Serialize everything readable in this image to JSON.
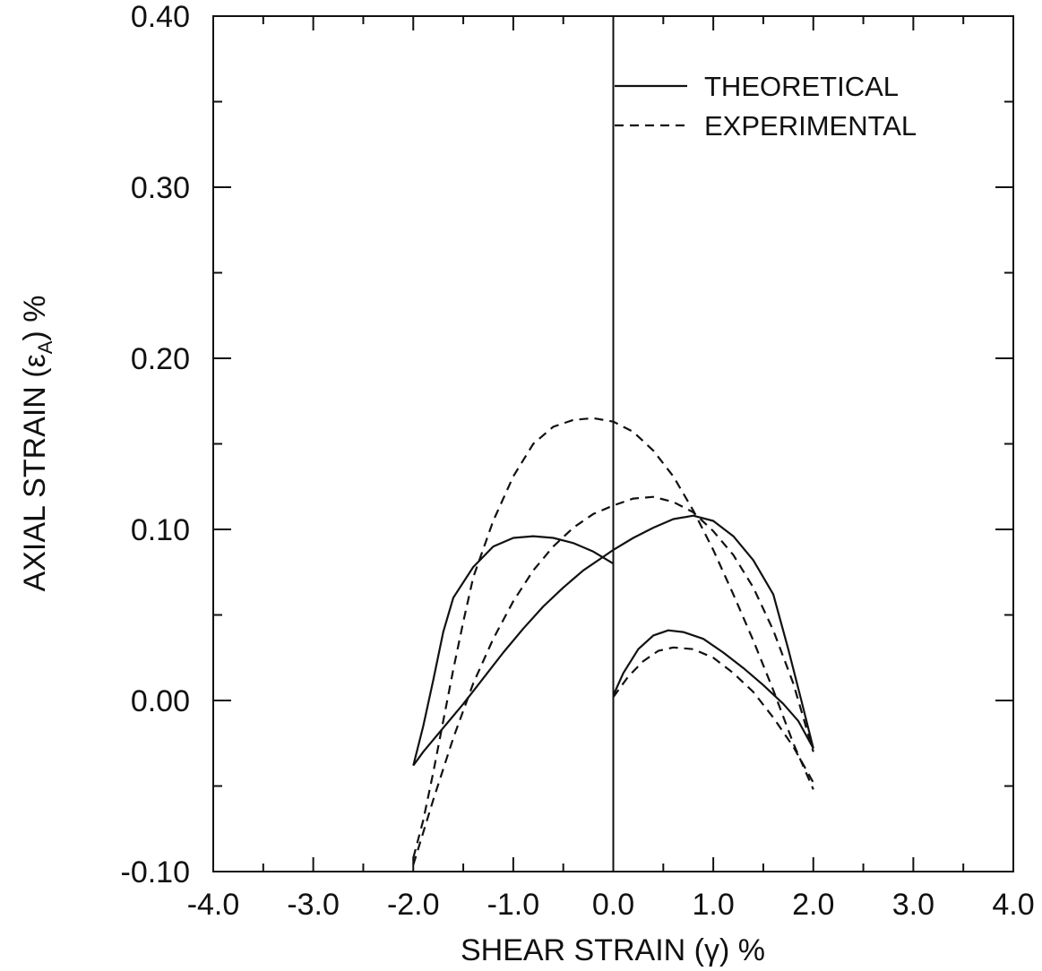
{
  "chart_data": {
    "type": "line",
    "title": "",
    "xlabel": "SHEAR STRAIN (γ) %",
    "ylabel": "AXIAL STRAIN (εA) %",
    "ylabel_main": "AXIAL STRAIN (ε",
    "ylabel_sub": "A",
    "ylabel_end": ") %",
    "xlim": [
      -4.0,
      4.0
    ],
    "ylim": [
      -0.1,
      0.4
    ],
    "x_ticks": [
      "-4.0",
      "-3.0",
      "-2.0",
      "-1.0",
      "0.0",
      "1.0",
      "2.0",
      "3.0",
      "4.0"
    ],
    "y_ticks": [
      "-0.10",
      "0.00",
      "0.10",
      "0.20",
      "0.30",
      "0.40"
    ],
    "grid": false,
    "legend_position": "top-right",
    "series": [
      {
        "name": "THEORETICAL",
        "style": "solid",
        "segments": [
          [
            [
              -2.0,
              -0.038
            ],
            [
              -1.9,
              -0.03
            ],
            [
              -1.7,
              -0.016
            ],
            [
              -1.5,
              -0.002
            ],
            [
              -1.3,
              0.013
            ],
            [
              -1.1,
              0.028
            ],
            [
              -0.9,
              0.042
            ],
            [
              -0.7,
              0.055
            ],
            [
              -0.5,
              0.066
            ],
            [
              -0.3,
              0.076
            ],
            [
              -0.1,
              0.084
            ],
            [
              0.0,
              0.088
            ],
            [
              0.2,
              0.095
            ],
            [
              0.4,
              0.101
            ],
            [
              0.6,
              0.106
            ],
            [
              0.8,
              0.108
            ],
            [
              1.0,
              0.105
            ],
            [
              1.2,
              0.096
            ],
            [
              1.4,
              0.082
            ],
            [
              1.6,
              0.062
            ],
            [
              1.75,
              0.03
            ],
            [
              1.88,
              0.0
            ],
            [
              2.0,
              -0.028
            ]
          ],
          [
            [
              0.0,
              0.08
            ],
            [
              -0.2,
              0.087
            ],
            [
              -0.4,
              0.092
            ],
            [
              -0.6,
              0.095
            ],
            [
              -0.8,
              0.096
            ],
            [
              -1.0,
              0.095
            ],
            [
              -1.2,
              0.09
            ],
            [
              -1.4,
              0.078
            ],
            [
              -1.6,
              0.06
            ],
            [
              -1.7,
              0.04
            ],
            [
              -1.8,
              0.012
            ],
            [
              -1.9,
              -0.015
            ],
            [
              -2.0,
              -0.038
            ]
          ],
          [
            [
              0.0,
              0.003
            ],
            [
              0.1,
              0.016
            ],
            [
              0.25,
              0.03
            ],
            [
              0.4,
              0.038
            ],
            [
              0.55,
              0.041
            ],
            [
              0.7,
              0.04
            ],
            [
              0.9,
              0.036
            ],
            [
              1.1,
              0.028
            ],
            [
              1.3,
              0.019
            ],
            [
              1.5,
              0.009
            ],
            [
              1.7,
              -0.002
            ],
            [
              1.85,
              -0.012
            ],
            [
              2.0,
              -0.028
            ]
          ]
        ]
      },
      {
        "name": "EXPERIMENTAL",
        "style": "dashed",
        "segments": [
          [
            [
              -2.0,
              -0.092
            ],
            [
              -1.9,
              -0.07
            ],
            [
              -1.8,
              -0.042
            ],
            [
              -1.7,
              -0.012
            ],
            [
              -1.6,
              0.018
            ],
            [
              -1.5,
              0.046
            ],
            [
              -1.4,
              0.072
            ],
            [
              -1.2,
              0.105
            ],
            [
              -1.0,
              0.131
            ],
            [
              -0.8,
              0.15
            ],
            [
              -0.6,
              0.16
            ],
            [
              -0.4,
              0.164
            ],
            [
              -0.2,
              0.165
            ],
            [
              0.0,
              0.163
            ],
            [
              0.2,
              0.157
            ],
            [
              0.4,
              0.146
            ],
            [
              0.6,
              0.131
            ],
            [
              0.8,
              0.111
            ],
            [
              1.0,
              0.088
            ],
            [
              1.2,
              0.062
            ],
            [
              1.4,
              0.035
            ],
            [
              1.6,
              0.006
            ],
            [
              1.8,
              -0.025
            ],
            [
              2.0,
              -0.052
            ]
          ],
          [
            [
              -2.0,
              -0.096
            ],
            [
              -1.8,
              -0.058
            ],
            [
              -1.6,
              -0.022
            ],
            [
              -1.4,
              0.01
            ],
            [
              -1.2,
              0.036
            ],
            [
              -1.0,
              0.058
            ],
            [
              -0.8,
              0.076
            ],
            [
              -0.6,
              0.09
            ],
            [
              -0.4,
              0.101
            ],
            [
              -0.2,
              0.109
            ],
            [
              0.0,
              0.114
            ],
            [
              0.2,
              0.118
            ],
            [
              0.4,
              0.119
            ],
            [
              0.6,
              0.116
            ],
            [
              0.8,
              0.11
            ],
            [
              1.0,
              0.099
            ],
            [
              1.2,
              0.085
            ],
            [
              1.4,
              0.066
            ],
            [
              1.6,
              0.041
            ],
            [
              1.8,
              0.01
            ],
            [
              1.9,
              -0.01
            ],
            [
              2.0,
              -0.03
            ]
          ],
          [
            [
              0.0,
              0.002
            ],
            [
              0.15,
              0.014
            ],
            [
              0.3,
              0.023
            ],
            [
              0.45,
              0.029
            ],
            [
              0.6,
              0.031
            ],
            [
              0.8,
              0.03
            ],
            [
              1.0,
              0.025
            ],
            [
              1.2,
              0.016
            ],
            [
              1.4,
              0.005
            ],
            [
              1.6,
              -0.01
            ],
            [
              1.8,
              -0.027
            ],
            [
              2.0,
              -0.048
            ]
          ]
        ]
      }
    ]
  }
}
